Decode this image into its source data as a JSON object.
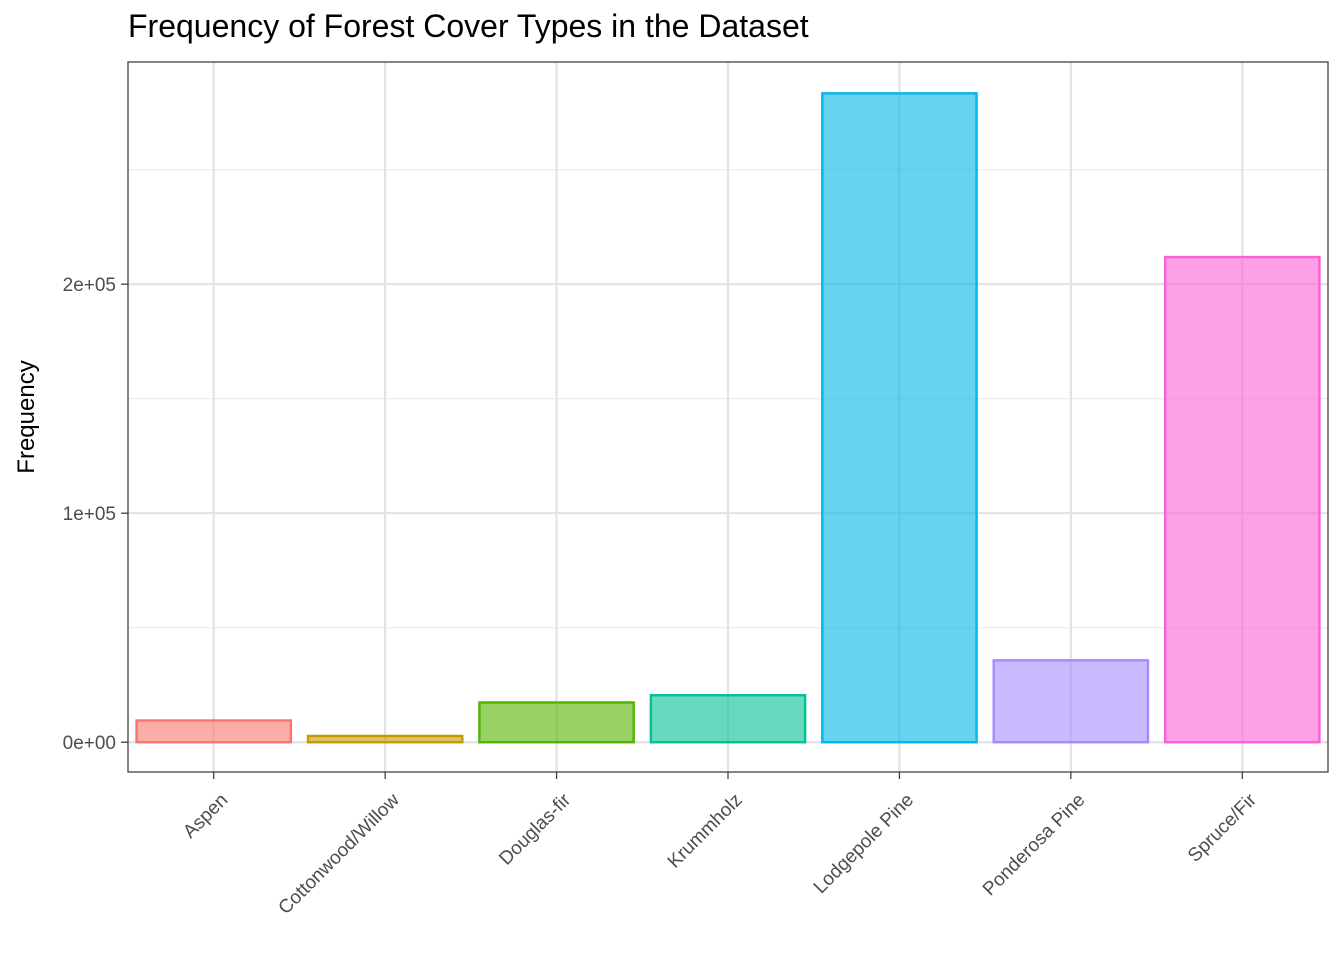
{
  "chart_data": {
    "type": "bar",
    "title": "Frequency of Forest Cover Types in the Dataset",
    "xlabel": "",
    "ylabel": "Frequency",
    "categories": [
      "Aspen",
      "Cottonwood/Willow",
      "Douglas-fir",
      "Krummholz",
      "Lodgepole Pine",
      "Ponderosa Pine",
      "Spruce/Fir"
    ],
    "values": [
      9493,
      2747,
      17367,
      20510,
      283301,
      35754,
      211840
    ],
    "colors": [
      "#F8766D",
      "#C49A00",
      "#53B400",
      "#00C094",
      "#00B6EB",
      "#A58AFF",
      "#FB61D7"
    ],
    "ylim": [
      -13000,
      297000
    ],
    "yticks": [
      0,
      100000,
      200000
    ],
    "ytick_labels": [
      "0e+00",
      "1e+05",
      "2e+05"
    ],
    "grid": true,
    "legend": "none"
  }
}
